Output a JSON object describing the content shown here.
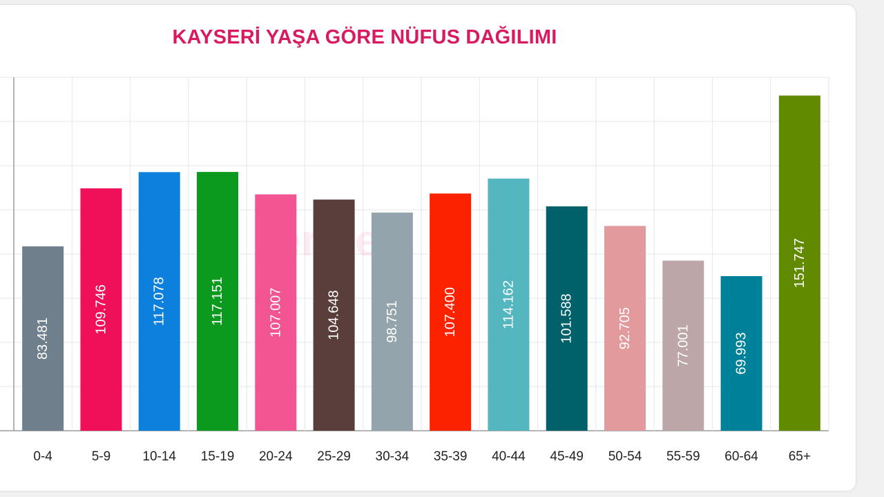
{
  "chart_data": {
    "type": "bar",
    "title": "KAYSERİ YAŞA GÖRE NÜFUS DAĞILIMI",
    "categories": [
      "0-4",
      "5-9",
      "10-14",
      "15-19",
      "20-24",
      "25-29",
      "30-34",
      "35-39",
      "40-44",
      "45-49",
      "50-54",
      "55-59",
      "60-64",
      "65+"
    ],
    "values": [
      83481,
      109746,
      117078,
      117151,
      107007,
      104648,
      98751,
      107400,
      114162,
      101588,
      92705,
      77001,
      69993,
      151747
    ],
    "value_labels": [
      "83.481",
      "109.746",
      "117.078",
      "117.151",
      "107.007",
      "104.648",
      "98.751",
      "107.400",
      "114.162",
      "101.588",
      "92.705",
      "77.001",
      "69.993",
      "151.747"
    ],
    "colors": [
      "#6f7f8b",
      "#f0105a",
      "#0d7fdd",
      "#0b9a1e",
      "#f25591",
      "#5a3e3c",
      "#93a4ad",
      "#fc2200",
      "#54b7bf",
      "#00616a",
      "#e29a9c",
      "#bda6a7",
      "#00819a",
      "#628a00"
    ],
    "label_colors": [
      "#ffffff",
      "#ffffff",
      "#ffffff",
      "#ffffff",
      "#ffffff",
      "#ffffff",
      "#ffffff",
      "#ffffff",
      "#ffffff",
      "#ffffff",
      "#ffffff",
      "#ffffff",
      "#ffffff",
      "#ffffff"
    ],
    "xlabel": "",
    "ylabel": "",
    "ylim": [
      0,
      160000
    ],
    "grid": true,
    "title_color": "#d81b60",
    "watermark": "ende"
  }
}
